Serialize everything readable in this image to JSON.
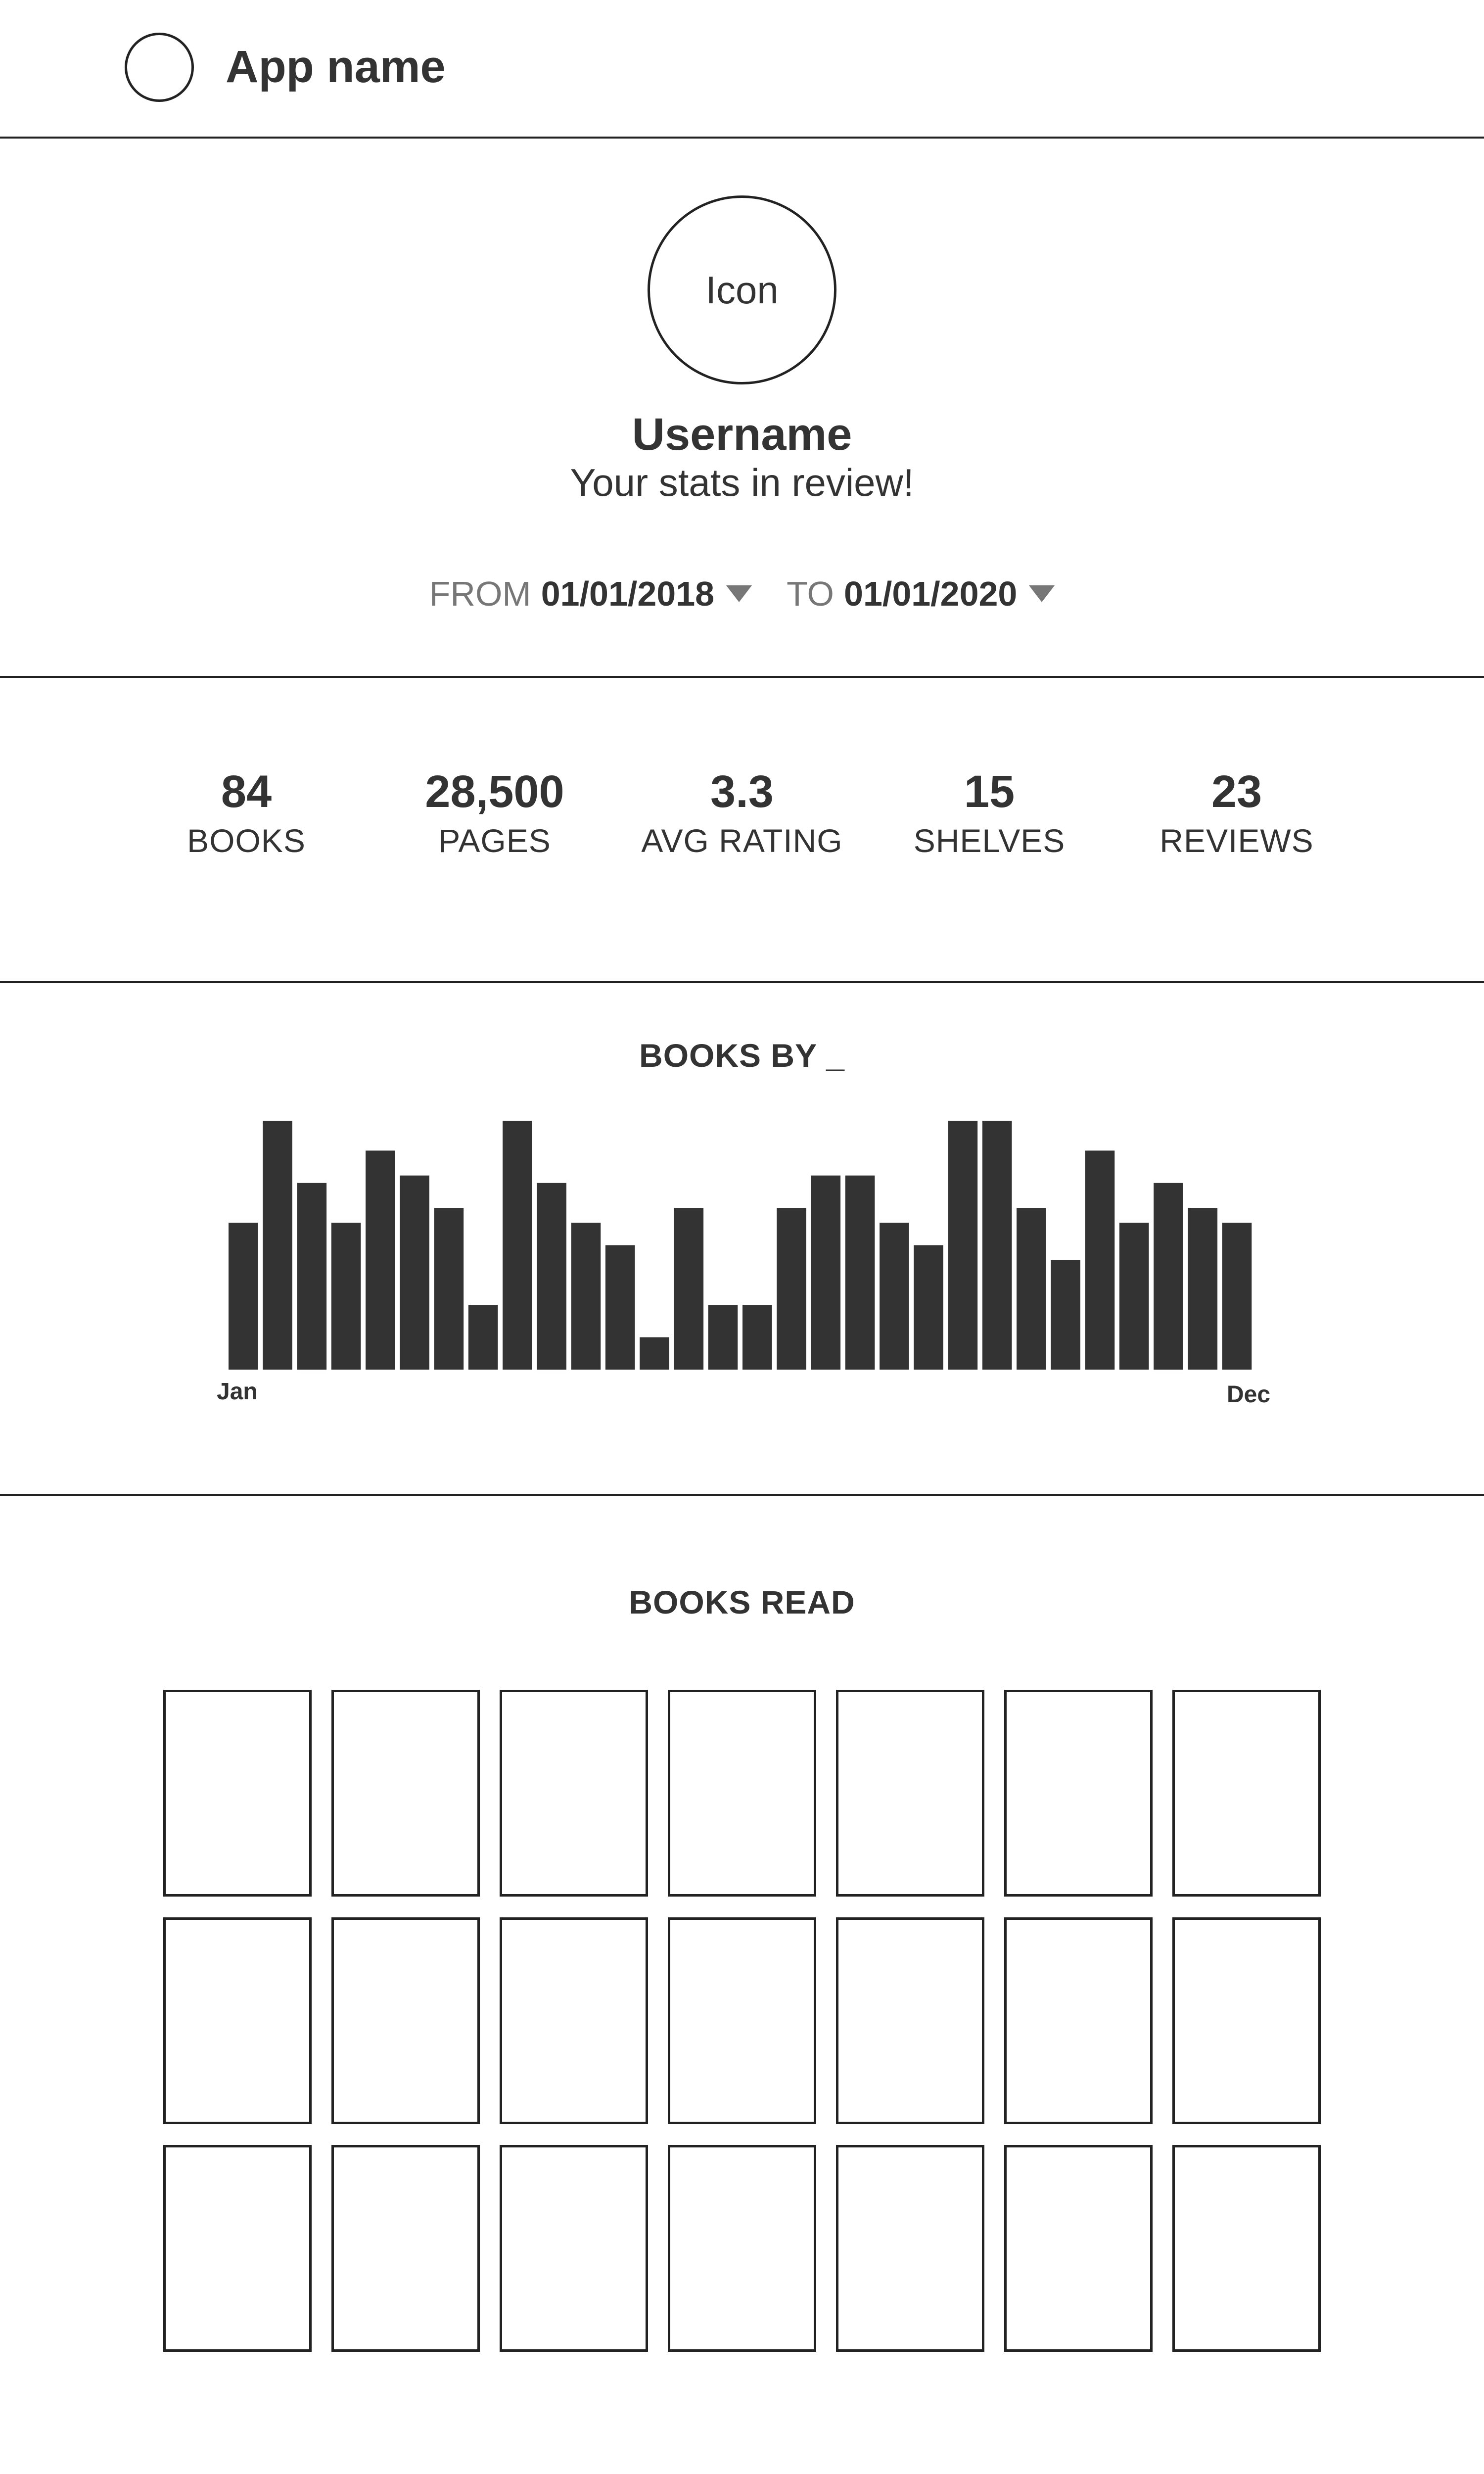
{
  "header": {
    "app_name": "App name",
    "logo_icon": "circle-logo-icon"
  },
  "profile": {
    "icon_label": "Icon",
    "username": "Username",
    "subtitle": "Your stats in review!"
  },
  "date_range": {
    "from_label": "FROM",
    "from_value": "01/01/2018",
    "to_label": "TO",
    "to_value": "01/01/2020"
  },
  "stats": [
    {
      "value": "84",
      "label": "BOOKS"
    },
    {
      "value": "28,500",
      "label": "PAGES"
    },
    {
      "value": "3.3",
      "label": "AVG RATING"
    },
    {
      "value": "15",
      "label": "SHELVES"
    },
    {
      "value": "23",
      "label": "REVIEWS"
    }
  ],
  "chart_data": {
    "type": "bar",
    "title": "BOOKS BY _",
    "x_start_label": "Jan",
    "x_end_label": "Dec",
    "values": [
      59,
      100,
      75,
      59,
      88,
      78,
      65,
      26,
      100,
      75,
      59,
      50,
      13,
      65,
      26,
      26,
      65,
      78,
      78,
      59,
      50,
      100,
      100,
      65,
      44,
      88,
      59,
      75,
      65,
      59
    ],
    "ylim": [
      0,
      100
    ],
    "bar_color": "#333333",
    "grid": false
  },
  "books_read": {
    "title": "BOOKS READ",
    "count": 21
  },
  "colors": {
    "text": "#333333",
    "muted": "#777777",
    "line": "#222222"
  }
}
